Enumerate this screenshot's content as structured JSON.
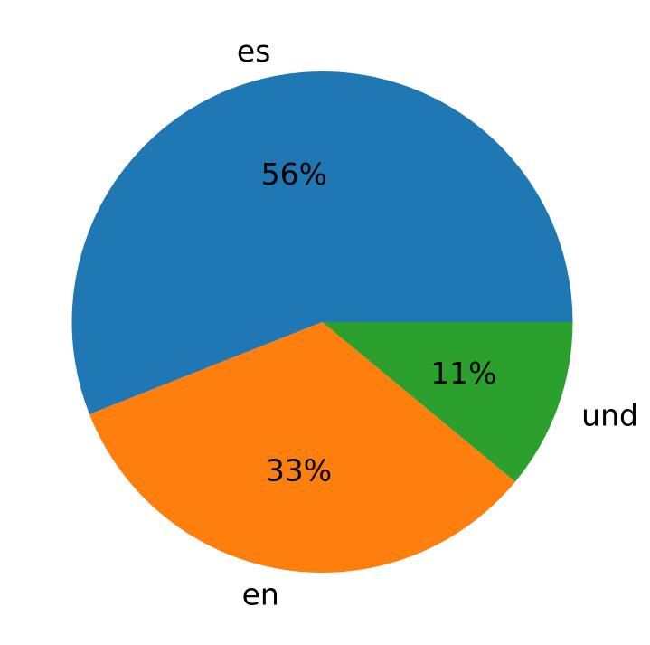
{
  "chart_data": {
    "type": "pie",
    "title": "",
    "slices": [
      {
        "label": "es",
        "value": 56,
        "pct_label": "56%",
        "color": "#1f77b4"
      },
      {
        "label": "en",
        "value": 33,
        "pct_label": "33%",
        "color": "#ff7f0e"
      },
      {
        "label": "und",
        "value": 11,
        "pct_label": "11%",
        "color": "#2ca02c"
      }
    ],
    "start_angle_deg": 0,
    "direction": "counterclockwise"
  }
}
